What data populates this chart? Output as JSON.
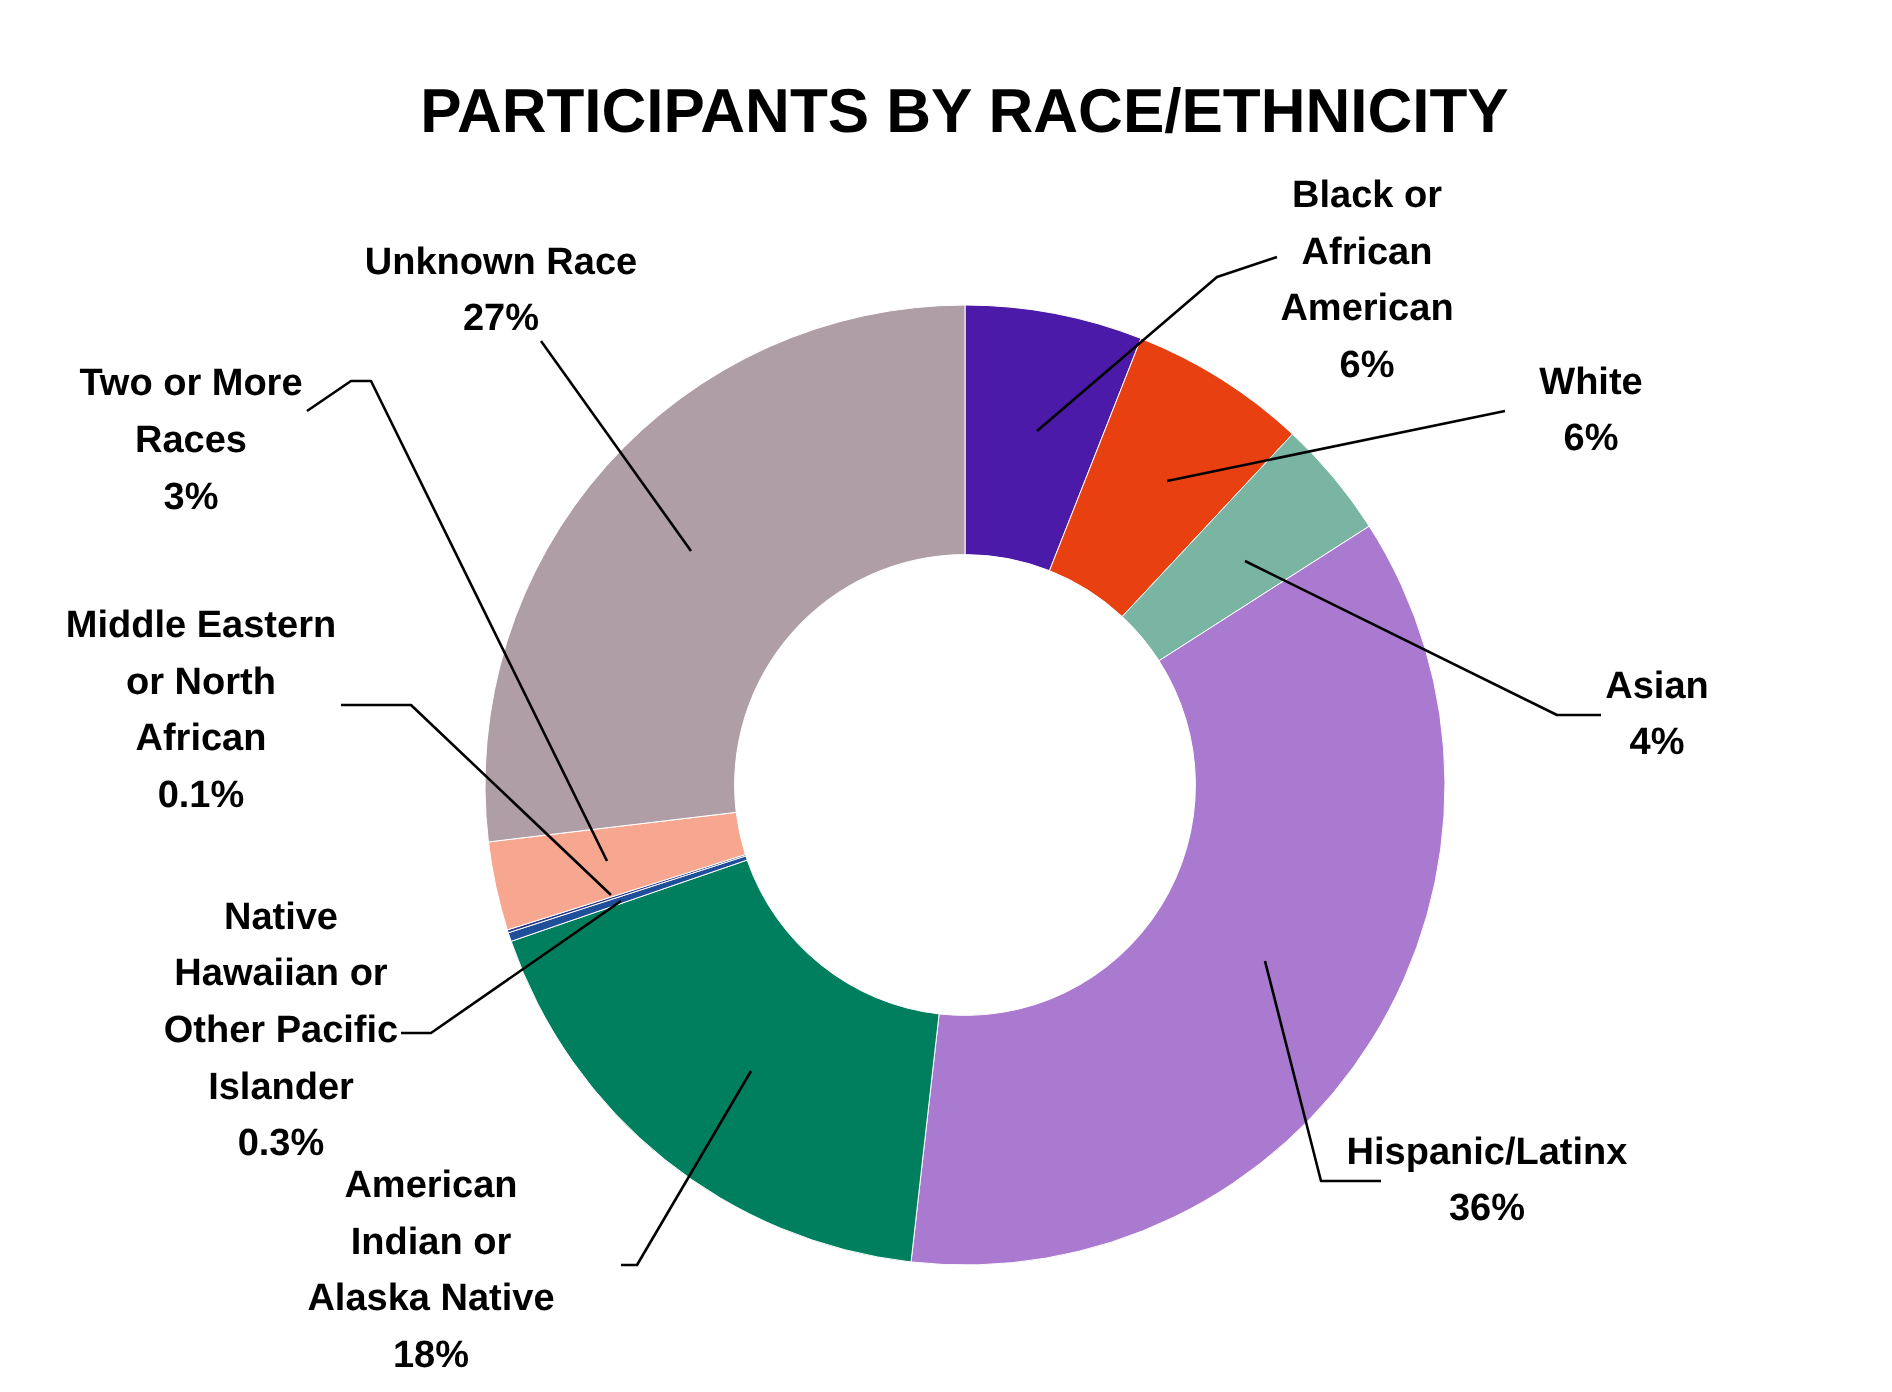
{
  "chart_data": {
    "type": "donut",
    "title": "PARTICIPANTS BY RACE/ETHNICITY",
    "categories": [
      "Black or African American",
      "White",
      "Asian",
      "Hispanic/Latinx",
      "American Indian or Alaska Native",
      "Native Hawaiian or Other Pacific Islander",
      "Middle Eastern or North African",
      "Two or More Races",
      "Unknown Race"
    ],
    "values": [
      6,
      6,
      4,
      36,
      18,
      0.3,
      0.1,
      3,
      27
    ],
    "value_labels": [
      "6%",
      "6%",
      "4%",
      "36%",
      "18%",
      "0.3%",
      "0.1%",
      "3%",
      "27%"
    ],
    "colors": [
      "#4b1aa8",
      "#e84011",
      "#79b5a2",
      "#a97ad0",
      "#007f5f",
      "#1f4e9a",
      "#2a3a8a",
      "#f7a78f",
      "#b09ea6"
    ]
  }
}
